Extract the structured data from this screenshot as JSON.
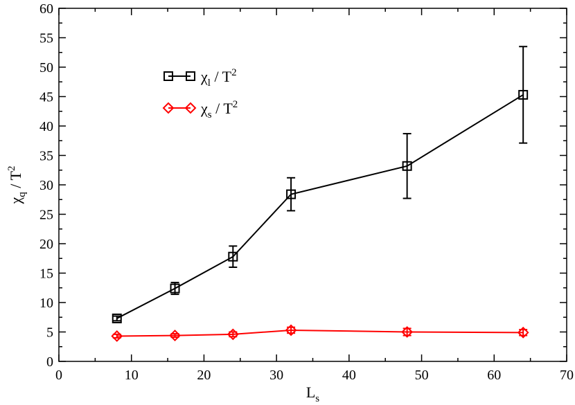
{
  "chart_data": {
    "type": "line",
    "xlabel": "L",
    "xlabel_sub": "s",
    "ylabel": "χ",
    "ylabel_sub": "q",
    "ylabel_suffix": " / T",
    "ylabel_sup": "2",
    "xlim": [
      0,
      70
    ],
    "ylim": [
      0,
      60
    ],
    "xticks": [
      0,
      10,
      20,
      30,
      40,
      50,
      60,
      70
    ],
    "yticks": [
      0,
      5,
      10,
      15,
      20,
      25,
      30,
      35,
      40,
      45,
      50,
      55,
      60
    ],
    "grid": false,
    "legend_position": "top-left",
    "series": [
      {
        "name": "χl / T2",
        "legend": {
          "base": "χ",
          "sub": "l",
          "mid": " / T",
          "sup": "2"
        },
        "color": "#000000",
        "marker": "square",
        "x": [
          8,
          16,
          24,
          32,
          48,
          64
        ],
        "y": [
          7.3,
          12.4,
          17.8,
          28.4,
          33.2,
          45.3
        ],
        "err": [
          0.4,
          1.0,
          1.8,
          2.8,
          5.5,
          8.2
        ]
      },
      {
        "name": "χs / T2",
        "legend": {
          "base": "χ",
          "sub": "s",
          "mid": " / T",
          "sup": "2"
        },
        "color": "#ff0000",
        "marker": "diamond",
        "x": [
          8,
          16,
          24,
          32,
          48,
          64
        ],
        "y": [
          4.3,
          4.4,
          4.6,
          5.3,
          5.0,
          4.9
        ],
        "err": [
          0.3,
          0.3,
          0.4,
          0.5,
          0.6,
          0.5
        ]
      }
    ]
  }
}
